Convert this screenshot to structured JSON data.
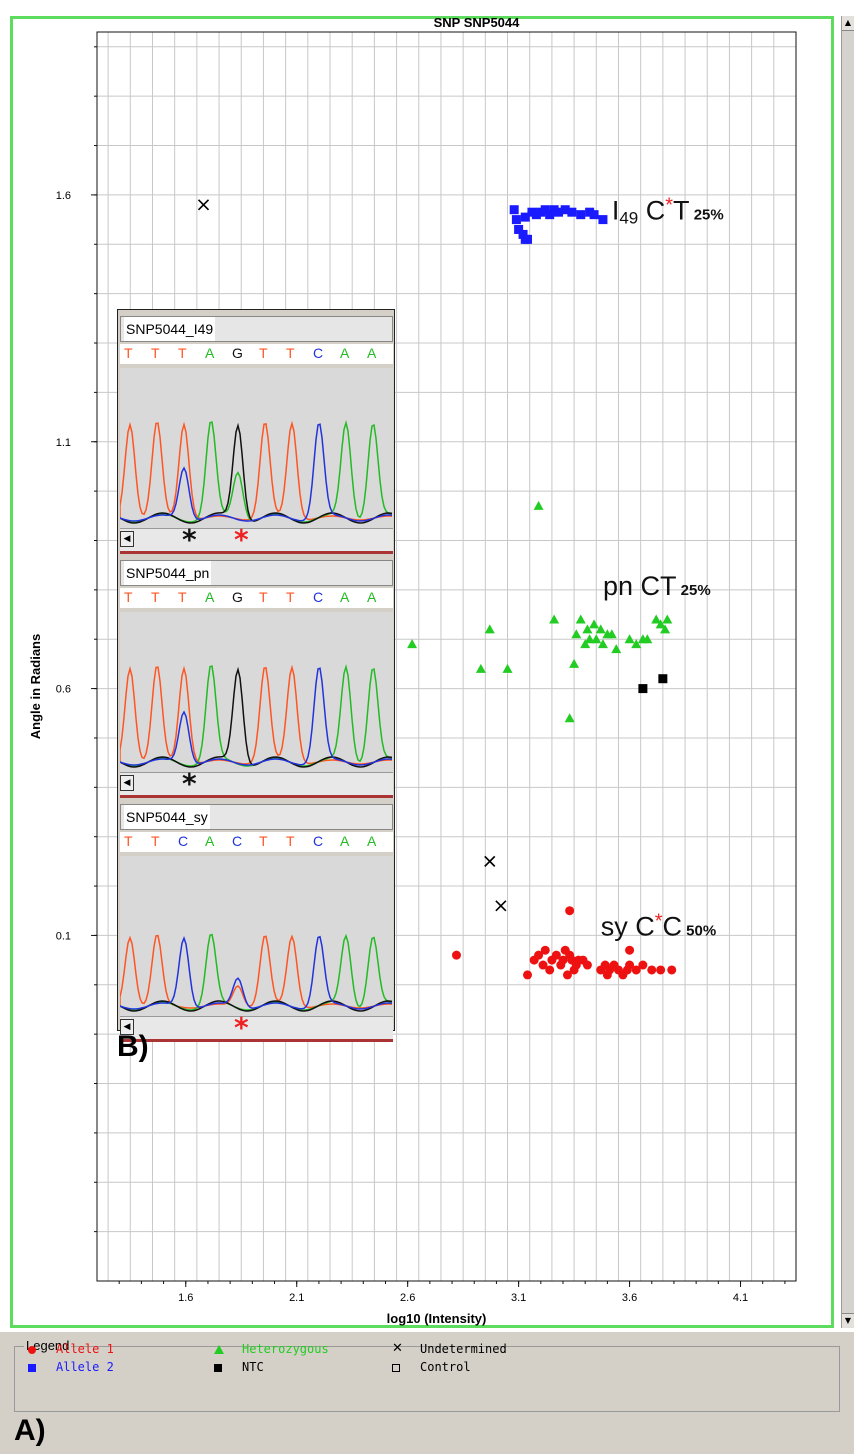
{
  "chart_data": {
    "type": "scatter",
    "title": "SNP SNP5044",
    "xlabel": "log10 (Intensity)",
    "ylabel": "Angle in Radians",
    "xlim": [
      1.2,
      4.35
    ],
    "ylim": [
      -0.6,
      1.93
    ],
    "x_ticks": [
      "1.6",
      "2.1",
      "2.6",
      "3.1",
      "3.6",
      "4.1"
    ],
    "y_ticks": [
      "1.6",
      "1.1",
      "0.6",
      "0.1"
    ],
    "grid": true,
    "series": [
      {
        "name": "Allele 2",
        "color": "#1a1aff",
        "marker": "square",
        "points": [
          [
            3.08,
            1.57
          ],
          [
            3.09,
            1.55
          ],
          [
            3.1,
            1.53
          ],
          [
            3.12,
            1.52
          ],
          [
            3.13,
            1.51
          ],
          [
            3.14,
            1.51
          ],
          [
            3.13,
            1.555
          ],
          [
            3.16,
            1.565
          ],
          [
            3.18,
            1.56
          ],
          [
            3.2,
            1.565
          ],
          [
            3.22,
            1.57
          ],
          [
            3.24,
            1.56
          ],
          [
            3.26,
            1.57
          ],
          [
            3.28,
            1.565
          ],
          [
            3.31,
            1.57
          ],
          [
            3.34,
            1.565
          ],
          [
            3.38,
            1.56
          ],
          [
            3.42,
            1.565
          ],
          [
            3.44,
            1.56
          ],
          [
            3.48,
            1.55
          ]
        ]
      },
      {
        "name": "Heterozygous",
        "color": "#22cc22",
        "marker": "triangle",
        "points": [
          [
            2.62,
            0.69
          ],
          [
            2.93,
            0.64
          ],
          [
            2.97,
            0.72
          ],
          [
            3.05,
            0.64
          ],
          [
            3.19,
            0.97
          ],
          [
            3.26,
            0.74
          ],
          [
            3.35,
            0.65
          ],
          [
            3.36,
            0.71
          ],
          [
            3.38,
            0.74
          ],
          [
            3.4,
            0.69
          ],
          [
            3.41,
            0.72
          ],
          [
            3.42,
            0.7
          ],
          [
            3.44,
            0.73
          ],
          [
            3.45,
            0.7
          ],
          [
            3.47,
            0.72
          ],
          [
            3.48,
            0.69
          ],
          [
            3.5,
            0.71
          ],
          [
            3.52,
            0.71
          ],
          [
            3.54,
            0.68
          ],
          [
            3.6,
            0.7
          ],
          [
            3.63,
            0.69
          ],
          [
            3.66,
            0.7
          ],
          [
            3.68,
            0.7
          ],
          [
            3.72,
            0.74
          ],
          [
            3.74,
            0.73
          ],
          [
            3.76,
            0.72
          ],
          [
            3.77,
            0.74
          ],
          [
            3.33,
            0.54
          ]
        ]
      },
      {
        "name": "NTC",
        "color": "#000000",
        "marker": "square",
        "points": [
          [
            3.66,
            0.6
          ],
          [
            3.75,
            0.62
          ]
        ]
      },
      {
        "name": "Undetermined",
        "color": "#000000",
        "marker": "x",
        "points": [
          [
            1.68,
            1.58
          ],
          [
            2.97,
            0.25
          ],
          [
            3.02,
            0.16
          ]
        ]
      },
      {
        "name": "Allele 1",
        "color": "#ee1111",
        "marker": "circle",
        "points": [
          [
            2.82,
            0.06
          ],
          [
            3.14,
            0.02
          ],
          [
            3.17,
            0.05
          ],
          [
            3.19,
            0.06
          ],
          [
            3.21,
            0.04
          ],
          [
            3.22,
            0.07
          ],
          [
            3.24,
            0.03
          ],
          [
            3.25,
            0.05
          ],
          [
            3.27,
            0.06
          ],
          [
            3.29,
            0.04
          ],
          [
            3.3,
            0.05
          ],
          [
            3.31,
            0.07
          ],
          [
            3.32,
            0.02
          ],
          [
            3.33,
            0.06
          ],
          [
            3.34,
            0.05
          ],
          [
            3.35,
            0.03
          ],
          [
            3.36,
            0.04
          ],
          [
            3.37,
            0.05
          ],
          [
            3.39,
            0.05
          ],
          [
            3.41,
            0.04
          ],
          [
            3.33,
            0.15
          ],
          [
            3.47,
            0.03
          ],
          [
            3.49,
            0.04
          ],
          [
            3.5,
            0.02
          ],
          [
            3.51,
            0.03
          ],
          [
            3.53,
            0.04
          ],
          [
            3.55,
            0.03
          ],
          [
            3.57,
            0.02
          ],
          [
            3.59,
            0.03
          ],
          [
            3.6,
            0.04
          ],
          [
            3.6,
            0.07
          ],
          [
            3.63,
            0.03
          ],
          [
            3.66,
            0.04
          ],
          [
            3.7,
            0.03
          ],
          [
            3.74,
            0.03
          ],
          [
            3.79,
            0.03
          ]
        ]
      }
    ],
    "annotations": [
      {
        "group": "I49",
        "text_a": "I",
        "sub": "49",
        "pre": " C",
        "star": "*",
        "post": "T",
        "pct": "25%",
        "x": 3.52,
        "y": 1.55
      },
      {
        "group": "pn",
        "text": "pn  CT",
        "pct": "25%",
        "x": 3.48,
        "y": 0.79
      },
      {
        "group": "sy",
        "pre": "sy C",
        "star": "*",
        "post": "C",
        "pct": "50%",
        "x": 3.47,
        "y": 0.1
      }
    ]
  },
  "inset": {
    "panels": [
      {
        "name": "SNP5044_I49",
        "bases": [
          "T",
          "T",
          "T",
          "A",
          "G",
          "T",
          "T",
          "C",
          "A",
          "A"
        ],
        "stars": [
          {
            "color": "#111111",
            "pos": 70
          },
          {
            "color": "#ee2222",
            "pos": 122
          }
        ]
      },
      {
        "name": "SNP5044_pn",
        "bases": [
          "T",
          "T",
          "T",
          "A",
          "G",
          "T",
          "T",
          "C",
          "A",
          "A"
        ],
        "stars": [
          {
            "color": "#111111",
            "pos": 70
          }
        ]
      },
      {
        "name": "SNP5044_sy",
        "bases": [
          "T",
          "T",
          "C",
          "A",
          "C",
          "T",
          "T",
          "C",
          "A",
          "A"
        ],
        "stars": [
          {
            "color": "#ee2222",
            "pos": 122
          }
        ]
      }
    ],
    "label": "B)"
  },
  "legend": {
    "title": "Legend",
    "items": [
      {
        "label": "Allele 1",
        "color": "#ee1111",
        "marker": "circle"
      },
      {
        "label": "Allele 2",
        "color": "#1a1aff",
        "marker": "square"
      },
      {
        "label": "Heterozygous",
        "color": "#22cc22",
        "marker": "triangle"
      },
      {
        "label": "NTC",
        "color": "#000000",
        "marker": "square"
      },
      {
        "label": "Undetermined",
        "color": "#000000",
        "marker": "x"
      },
      {
        "label": "Control",
        "color": "#000000",
        "marker": "open-square"
      }
    ],
    "panel_label": "A)"
  },
  "base_colors": {
    "T": "#ff5522",
    "A": "#22bb22",
    "G": "#111111",
    "C": "#2233dd"
  }
}
